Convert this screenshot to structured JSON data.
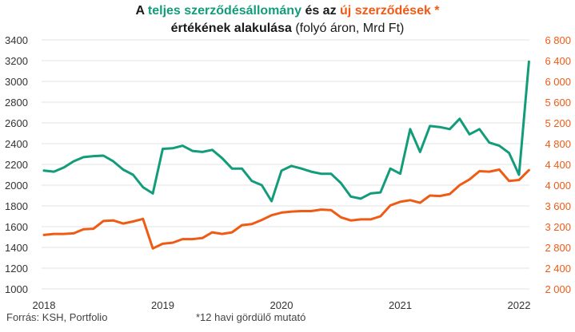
{
  "title": {
    "w1": "A",
    "w2": "teljes szerződésállomány",
    "w3": "és az",
    "w4": "új szerződések *",
    "w5": "értékének alakulása",
    "w6": "(folyó áron, Mrd Ft)"
  },
  "source": "Forrás: KSH, Portfolio",
  "footnote": "*12 havi gördülő mutató",
  "colors": {
    "green": "#139c7a",
    "orange": "#ef5b14",
    "grid": "#e3e3e3"
  },
  "chart_data": {
    "type": "line",
    "title": "A teljes szerződésállomány és az új szerződések * értékének alakulása (folyó áron, Mrd Ft)",
    "grid": "horizontal",
    "legend": "none",
    "x_ticks": [
      "2018",
      "2019",
      "2020",
      "2021",
      "2022"
    ],
    "left_axis": {
      "range": [
        1000,
        3400
      ],
      "ticks": [
        "1000",
        "1200",
        "1400",
        "1600",
        "1800",
        "2000",
        "2200",
        "2400",
        "2600",
        "2800",
        "3000",
        "3200",
        "3400"
      ]
    },
    "right_axis": {
      "range": [
        2000,
        6800
      ],
      "ticks": [
        "2 000",
        "2 400",
        "2 800",
        "3 200",
        "3 600",
        "4 000",
        "4 400",
        "4 800",
        "5 200",
        "5 600",
        "6 000",
        "6 400",
        "6 800"
      ]
    },
    "x": [
      "2018-01",
      "2018-02",
      "2018-03",
      "2018-04",
      "2018-05",
      "2018-06",
      "2018-07",
      "2018-08",
      "2018-09",
      "2018-10",
      "2018-11",
      "2018-12",
      "2019-01",
      "2019-02",
      "2019-03",
      "2019-04",
      "2019-05",
      "2019-06",
      "2019-07",
      "2019-08",
      "2019-09",
      "2019-10",
      "2019-11",
      "2019-12",
      "2020-01",
      "2020-02",
      "2020-03",
      "2020-04",
      "2020-05",
      "2020-06",
      "2020-07",
      "2020-08",
      "2020-09",
      "2020-10",
      "2020-11",
      "2020-12",
      "2021-01",
      "2021-02",
      "2021-03",
      "2021-04",
      "2021-05",
      "2021-06",
      "2021-07",
      "2021-08",
      "2021-09",
      "2021-10",
      "2021-11",
      "2021-12",
      "2022-01",
      "2022-02"
    ],
    "series": [
      {
        "axis": "left",
        "color": "#139c7a",
        "values": [
          2140,
          2130,
          2170,
          2230,
          2270,
          2280,
          2285,
          2230,
          2150,
          2100,
          1980,
          1920,
          2350,
          2355,
          2380,
          2330,
          2320,
          2340,
          2260,
          2160,
          2160,
          2040,
          2000,
          1845,
          2140,
          2185,
          2160,
          2130,
          2110,
          2110,
          2020,
          1890,
          1870,
          1920,
          1930,
          2160,
          2110,
          2540,
          2320,
          2570,
          2560,
          2540,
          2640,
          2490,
          2540,
          2410,
          2380,
          2310,
          2100,
          3190
        ]
      },
      {
        "axis": "right",
        "color": "#ef5b14",
        "values": [
          3040,
          3060,
          3060,
          3070,
          3150,
          3160,
          3310,
          3320,
          3260,
          3300,
          3350,
          2780,
          2870,
          2890,
          2960,
          2960,
          2980,
          3090,
          3060,
          3090,
          3230,
          3250,
          3330,
          3420,
          3470,
          3490,
          3500,
          3500,
          3530,
          3520,
          3380,
          3320,
          3340,
          3340,
          3400,
          3610,
          3680,
          3710,
          3660,
          3800,
          3790,
          3830,
          4000,
          4110,
          4270,
          4260,
          4300,
          4080,
          4100,
          4290
        ]
      }
    ]
  }
}
